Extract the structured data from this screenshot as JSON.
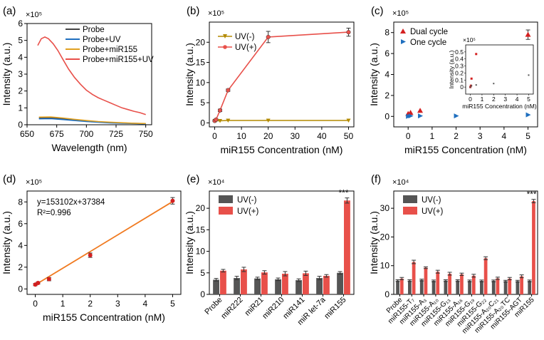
{
  "panels": [
    {
      "label": "(a)",
      "type": "line",
      "multiplier": "×10⁵",
      "xlabel": "Wavelength (nm)",
      "ylabel": "Intensity (a.u.)",
      "xlim": [
        650,
        755
      ],
      "ylim": [
        0,
        6
      ],
      "xticks": [
        650,
        675,
        700,
        725,
        750
      ],
      "yticks": [
        0,
        1,
        2,
        3,
        4,
        5,
        6
      ],
      "legend": [
        "Probe",
        "Probe+UV",
        "Probe+miR155",
        "Probe+miR155+UV"
      ],
      "colors": [
        "#444444",
        "#1f6fbf",
        "#e0a020",
        "#e8504a"
      ],
      "series": [
        {
          "name": "Probe",
          "x": [
            660,
            670,
            680,
            690,
            700,
            710,
            720,
            730,
            740,
            750
          ],
          "y": [
            0.4,
            0.41,
            0.35,
            0.28,
            0.22,
            0.17,
            0.13,
            0.1,
            0.08,
            0.06
          ]
        },
        {
          "name": "Probe+UV",
          "x": [
            660,
            670,
            680,
            690,
            700,
            710,
            720,
            730,
            740,
            750
          ],
          "y": [
            0.35,
            0.36,
            0.31,
            0.25,
            0.19,
            0.15,
            0.11,
            0.09,
            0.07,
            0.05
          ]
        },
        {
          "name": "Probe+miR155",
          "x": [
            660,
            670,
            680,
            690,
            700,
            710,
            720,
            730,
            740,
            750
          ],
          "y": [
            0.45,
            0.46,
            0.4,
            0.32,
            0.25,
            0.19,
            0.15,
            0.12,
            0.09,
            0.07
          ]
        },
        {
          "name": "Probe+miR155+UV",
          "x": [
            659,
            662,
            665,
            668,
            672,
            676,
            680,
            685,
            690,
            695,
            700,
            705,
            710,
            715,
            720,
            725,
            730,
            735,
            740,
            745,
            750
          ],
          "y": [
            4.7,
            5.1,
            5.2,
            5.1,
            4.8,
            4.4,
            3.9,
            3.3,
            2.8,
            2.4,
            2.05,
            1.8,
            1.6,
            1.45,
            1.3,
            1.15,
            1.0,
            0.9,
            0.8,
            0.72,
            0.6
          ]
        }
      ]
    },
    {
      "label": "(b)",
      "type": "line",
      "multiplier": "×10⁵",
      "xlabel": "miR155 Concentration (nM)",
      "ylabel": "Intensity (a.u.)",
      "xlim": [
        -2,
        52
      ],
      "ylim": [
        -1,
        25
      ],
      "xticks": [
        0,
        10,
        20,
        30,
        40,
        50
      ],
      "yticks": [
        0,
        5,
        10,
        15,
        20
      ],
      "legend": [
        "UV(-)",
        "UV(+)"
      ],
      "colors": [
        "#b38a00",
        "#e8504a"
      ],
      "series": [
        {
          "name": "UV(-)",
          "x": [
            0,
            0.5,
            2,
            5,
            20,
            50
          ],
          "y": [
            0.5,
            0.5,
            0.5,
            0.6,
            0.6,
            0.6
          ],
          "err": [
            0.1,
            0.1,
            0.1,
            0.1,
            0.1,
            0.1
          ]
        },
        {
          "name": "UV(+)",
          "x": [
            0,
            0.5,
            2,
            5,
            20,
            50
          ],
          "y": [
            0.5,
            0.8,
            3.1,
            8.1,
            21.3,
            22.5
          ],
          "err": [
            0.2,
            0.2,
            0.3,
            0.3,
            1.4,
            1.0
          ]
        }
      ]
    },
    {
      "label": "(c)",
      "type": "scatter",
      "multiplier": "×10⁵",
      "xlabel": "miR155 Concentration (nM)",
      "ylabel": "Intensity (a.u.)",
      "xlim": [
        -0.6,
        5.4
      ],
      "ylim": [
        -1,
        9
      ],
      "xticks": [
        0,
        1,
        2,
        3,
        4,
        5
      ],
      "yticks": [
        0,
        2,
        4,
        6,
        8
      ],
      "legend": [
        "Dual cycle",
        "One cycle"
      ],
      "colors": [
        "#d42020",
        "#1f6fbf"
      ],
      "series": [
        {
          "name": "Dual cycle",
          "x": [
            0,
            0.1,
            0.5,
            5
          ],
          "y": [
            0.25,
            0.35,
            0.55,
            7.8
          ],
          "err": [
            0.05,
            0.05,
            0.05,
            0.45
          ]
        },
        {
          "name": "One cycle",
          "x": [
            0,
            0.1,
            0.5,
            2,
            5
          ],
          "y": [
            0.0,
            0.05,
            0.05,
            0.05,
            0.15
          ],
          "err": [
            0.05,
            0.05,
            0.05,
            0.05,
            0.05
          ]
        }
      ],
      "inset": {
        "multiplier": "×10⁵",
        "xlabel": "miR155 Concentration (nM)",
        "ylabel": "Intensity (a.u.)",
        "xlim": [
          -0.4,
          5.4
        ],
        "ylim": [
          -0.1,
          0.6
        ],
        "xticks": [
          0,
          1,
          2,
          3,
          4,
          5
        ],
        "yticks": [
          0.0,
          0.1,
          0.2,
          0.3,
          0.4,
          0.5
        ],
        "dual": {
          "x": [
            0,
            0.05,
            0.1,
            0.5
          ],
          "y": [
            0.0,
            0.02,
            0.12,
            0.47
          ]
        },
        "one": {
          "x": [
            0,
            0.1,
            0.5,
            2,
            5
          ],
          "y": [
            0.0,
            0.02,
            0.03,
            0.05,
            0.17
          ]
        }
      }
    },
    {
      "label": "(d)",
      "type": "scatter",
      "multiplier": "×10⁵",
      "xlabel": "miR155 Concentration (nM)",
      "ylabel": "Intensity (a.u.)",
      "xlim": [
        -0.3,
        5.3
      ],
      "ylim": [
        -0.5,
        9
      ],
      "xticks": [
        0,
        1,
        2,
        3,
        4,
        5
      ],
      "yticks": [
        0,
        2,
        4,
        6,
        8
      ],
      "equation": "y=153102x+37384",
      "r2": "R²=0.996",
      "fit": {
        "slope": 1.53102,
        "intercept": 0.37384
      },
      "colors": [
        "#d42020",
        "#f07a20"
      ],
      "series": [
        {
          "name": "data",
          "x": [
            0,
            0.1,
            0.5,
            2,
            5
          ],
          "y": [
            0.4,
            0.55,
            0.9,
            3.1,
            8.1
          ],
          "err": [
            0.1,
            0.1,
            0.15,
            0.2,
            0.3
          ]
        }
      ]
    },
    {
      "label": "(e)",
      "type": "bar",
      "multiplier": "×10⁴",
      "xlabel": "",
      "ylabel": "Intensity (a.u.)",
      "ylim": [
        0,
        24
      ],
      "yticks": [
        0,
        5,
        10,
        15,
        20
      ],
      "categories": [
        "Probe",
        "miR222",
        "miR21",
        "miR210",
        "miR141",
        "miR let-7a",
        "miR155"
      ],
      "legend": [
        "UV(-)",
        "UV(+)"
      ],
      "colors": [
        "#555555",
        "#e8504a"
      ],
      "annotation": "***",
      "series": [
        {
          "name": "UV(-)",
          "values": [
            3.4,
            3.8,
            3.7,
            3.5,
            3.3,
            3.8,
            5.0
          ],
          "err": [
            0.3,
            0.4,
            0.3,
            0.3,
            0.3,
            0.4,
            0.3
          ]
        },
        {
          "name": "UV(+)",
          "values": [
            5.5,
            5.8,
            5.1,
            4.8,
            4.9,
            4.3,
            21.8
          ],
          "err": [
            0.3,
            0.5,
            0.4,
            0.5,
            0.5,
            0.3,
            0.6
          ]
        }
      ]
    },
    {
      "label": "(f)",
      "type": "bar",
      "multiplier": "×10⁴",
      "xlabel": "",
      "ylabel": "Intensity (a.u.)",
      "ylim": [
        0,
        36
      ],
      "yticks": [
        0,
        10,
        20,
        30
      ],
      "categories": [
        "Probe",
        "miR155-T₇",
        "miR155-A₃",
        "miR155-A₁₀",
        "miR155-G₁₃",
        "miR155-A₁₆",
        "miR155-G₁₉",
        "miR155-G₂₂",
        "miR155-A₂₀C₂₁",
        "miR155-A₂₀TC",
        "miR155-AGT",
        "miR155"
      ],
      "legend": [
        "UV(-)",
        "UV(+)"
      ],
      "colors": [
        "#555555",
        "#e8504a"
      ],
      "annotation": "***",
      "series": [
        {
          "name": "UV(-)",
          "values": [
            4.8,
            4.8,
            5.0,
            4.7,
            4.8,
            4.8,
            4.7,
            4.7,
            4.7,
            4.6,
            4.6,
            4.7
          ],
          "err": [
            0.3,
            0.3,
            0.3,
            0.3,
            0.3,
            0.3,
            0.3,
            0.3,
            0.3,
            0.3,
            0.3,
            0.3
          ]
        },
        {
          "name": "UV(+)",
          "values": [
            5.5,
            11.3,
            9.3,
            7.9,
            7.2,
            7.0,
            6.5,
            12.6,
            5.6,
            5.5,
            6.3,
            32.5
          ],
          "err": [
            0.4,
            0.6,
            0.3,
            0.5,
            0.5,
            0.4,
            0.5,
            0.5,
            0.4,
            0.4,
            0.5,
            0.6
          ]
        }
      ]
    }
  ]
}
